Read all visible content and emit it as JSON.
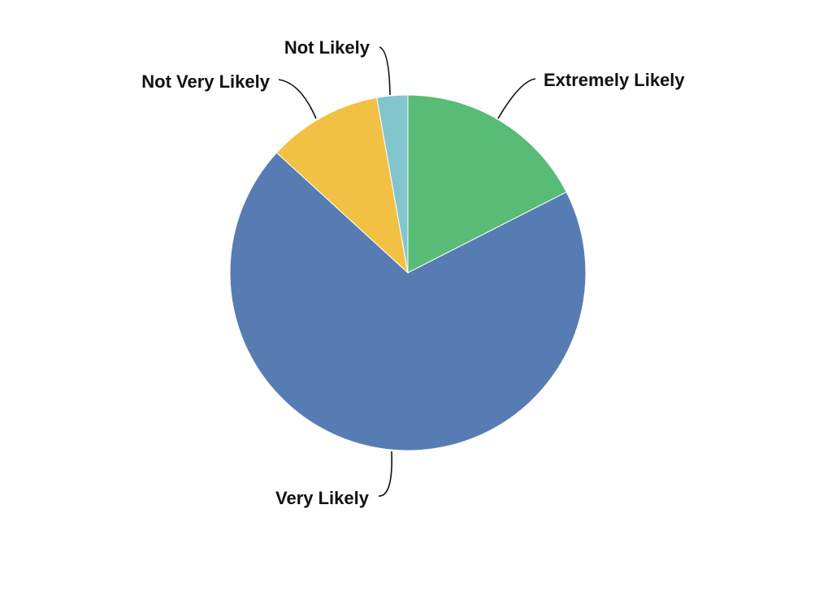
{
  "chart_data": {
    "type": "pie",
    "title": "",
    "start_angle_deg": 0,
    "direction": "clockwise",
    "slices": [
      {
        "label": "Extremely Likely",
        "value": 17.5,
        "color": "#58bb76"
      },
      {
        "label": "Very Likely",
        "value": 69.3,
        "color": "#577cb3"
      },
      {
        "label": "Not Very Likely",
        "value": 10.4,
        "color": "#f2c043"
      },
      {
        "label": "Not Likely",
        "value": 2.8,
        "color": "#83c5cd"
      }
    ]
  }
}
